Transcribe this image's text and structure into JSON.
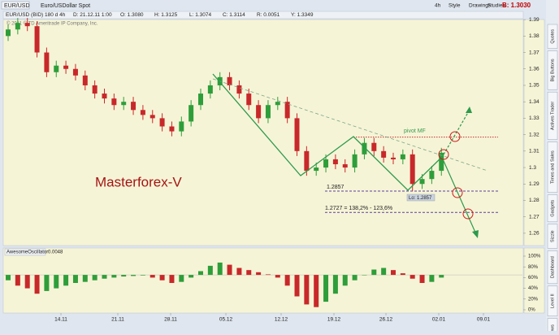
{
  "toolbar": {
    "symbol": "EUR/USD",
    "description": "Euro/USDollar Spot",
    "buttons": [
      "4h",
      "Style",
      "Drawings",
      "Studies"
    ],
    "bid": "B: 1.3030"
  },
  "info_row": [
    "EUR/USD (BID) 180 d 4h",
    "D: 21.12.11 1:00",
    "O: 1.3080",
    "H: 1.3125",
    "L: 1.3074",
    "C: 1.3114",
    "R: 0.0051",
    "Y: 1.3349"
  ],
  "side_tabs": [
    "Quotes",
    "Big Buttons",
    "Actives Trader",
    "Times and Sales",
    "Gadgets",
    "Sizzle",
    "Dashboard",
    "Level II",
    "Live News"
  ],
  "chart_data": {
    "type": "candlestick",
    "copyright": "© 2011 © TD Ameritrade IP Company, Inc.",
    "annotation": "Masterforex-V",
    "pivot_label": "pivot MF",
    "low_label": "Lo: 1.2857",
    "target_label": "1.2727 = 138,2% - 123,6%",
    "levels": [
      {
        "value": 1.3185,
        "color": "#c03030"
      },
      {
        "value": 1.2857,
        "color": "#5a3fa0"
      },
      {
        "value": 1.2727,
        "color": "#5a3fa0"
      }
    ],
    "up_color": "#2e9e3a",
    "down_color": "#c8282a",
    "open": [
      1.38,
      1.384,
      1.388,
      1.386,
      1.37,
      1.358,
      1.362,
      1.36,
      1.356,
      1.35,
      1.345,
      1.342,
      1.338,
      1.34,
      1.335,
      1.332,
      1.33,
      1.325,
      1.322,
      1.328,
      1.338,
      1.345,
      1.35,
      1.355,
      1.35,
      1.345,
      1.338,
      1.33,
      1.338,
      1.34,
      1.33,
      1.31,
      1.298,
      1.3,
      1.305,
      1.302,
      1.3,
      1.308,
      1.315,
      1.31,
      1.306,
      1.305,
      1.308,
      1.29,
      1.293,
      1.298
    ],
    "close": [
      1.384,
      1.388,
      1.386,
      1.37,
      1.358,
      1.362,
      1.36,
      1.356,
      1.35,
      1.345,
      1.342,
      1.338,
      1.34,
      1.335,
      1.332,
      1.33,
      1.325,
      1.322,
      1.328,
      1.338,
      1.345,
      1.35,
      1.355,
      1.35,
      1.345,
      1.338,
      1.33,
      1.338,
      1.34,
      1.33,
      1.31,
      1.298,
      1.3,
      1.305,
      1.302,
      1.3,
      1.308,
      1.315,
      1.31,
      1.306,
      1.305,
      1.308,
      1.29,
      1.293,
      1.298,
      1.309
    ],
    "high": [
      1.387,
      1.391,
      1.391,
      1.389,
      1.373,
      1.365,
      1.365,
      1.363,
      1.359,
      1.353,
      1.348,
      1.345,
      1.343,
      1.343,
      1.338,
      1.335,
      1.333,
      1.328,
      1.331,
      1.341,
      1.348,
      1.353,
      1.358,
      1.358,
      1.353,
      1.348,
      1.341,
      1.341,
      1.343,
      1.343,
      1.333,
      1.313,
      1.303,
      1.308,
      1.308,
      1.305,
      1.311,
      1.318,
      1.318,
      1.313,
      1.309,
      1.311,
      1.311,
      1.296,
      1.301,
      1.312
    ],
    "low": [
      1.377,
      1.381,
      1.383,
      1.367,
      1.355,
      1.355,
      1.357,
      1.353,
      1.347,
      1.342,
      1.339,
      1.335,
      1.335,
      1.332,
      1.329,
      1.327,
      1.322,
      1.319,
      1.319,
      1.325,
      1.335,
      1.342,
      1.347,
      1.347,
      1.342,
      1.335,
      1.327,
      1.327,
      1.335,
      1.327,
      1.307,
      1.295,
      1.295,
      1.297,
      1.299,
      1.297,
      1.297,
      1.305,
      1.307,
      1.303,
      1.302,
      1.302,
      1.2857,
      1.287,
      1.29,
      1.295
    ],
    "ylim": [
      1.255,
      1.395
    ],
    "yticks": [
      1.26,
      1.27,
      1.28,
      1.29,
      1.3,
      1.31,
      1.32,
      1.33,
      1.34,
      1.35,
      1.36,
      1.37,
      1.38,
      1.39
    ],
    "x_labels": [
      "14.11",
      "21.11",
      "28.11",
      "05.12",
      "12.12",
      "19.12",
      "26.12",
      "02.01",
      "09.01"
    ],
    "oscillator": {
      "name": "AwesomeOscillator",
      "reading": "0.0048",
      "baseline": 65,
      "values": [
        55,
        45,
        40,
        30,
        35,
        40,
        45,
        50,
        52,
        55,
        58,
        60,
        62,
        63,
        64,
        60,
        55,
        50,
        52,
        60,
        72,
        82,
        88,
        84,
        78,
        74,
        70,
        66,
        60,
        45,
        25,
        10,
        5,
        15,
        30,
        45,
        55,
        65,
        75,
        78,
        74,
        68,
        58,
        50,
        52,
        60
      ],
      "ylim": [
        0,
        100
      ],
      "yticks": [
        {
          "value": 0,
          "label": "0%"
        },
        {
          "value": 20,
          "label": "20%"
        },
        {
          "value": 40,
          "label": "40%"
        },
        {
          "value": 60,
          "label": "60%"
        },
        {
          "value": 80,
          "label": "80%"
        },
        {
          "value": 100,
          "label": "100%"
        }
      ]
    }
  }
}
